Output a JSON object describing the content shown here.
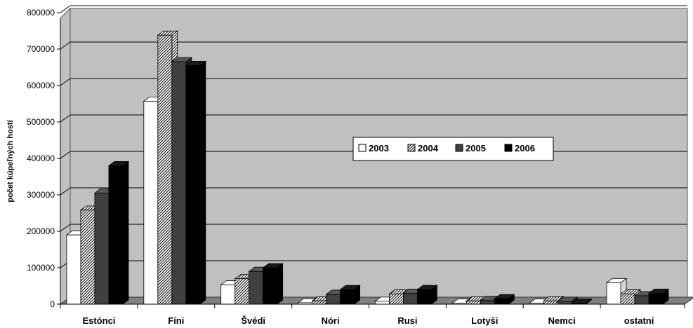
{
  "chart_data": {
    "type": "bar",
    "title": "",
    "xlabel": "",
    "ylabel": "počet kúpeľných hostí",
    "ylim": [
      0,
      800000
    ],
    "yticks": [
      0,
      100000,
      200000,
      300000,
      400000,
      500000,
      600000,
      700000,
      800000
    ],
    "ytick_labels": [
      "0",
      "100000",
      "200000",
      "300000",
      "400000",
      "500000",
      "600000",
      "700000",
      "800000"
    ],
    "grid": true,
    "legend": "center",
    "categories": [
      "Estónci",
      "Fíni",
      "Švédi",
      "Nóri",
      "Rusi",
      "Lotyši",
      "Nemci",
      "ostatní"
    ],
    "series": [
      {
        "name": "2003",
        "fill": "white",
        "values": [
          190000,
          557000,
          53000,
          4000,
          8000,
          3000,
          3000,
          59000
        ]
      },
      {
        "name": "2004",
        "fill": "hatched",
        "values": [
          258000,
          738000,
          70000,
          9000,
          28000,
          9000,
          9000,
          28000
        ]
      },
      {
        "name": "2005",
        "fill": "dark-gray",
        "values": [
          305000,
          665000,
          90000,
          27000,
          30000,
          10000,
          8000,
          23000
        ]
      },
      {
        "name": "2006",
        "fill": "black",
        "values": [
          380000,
          655000,
          100000,
          40000,
          40000,
          15000,
          3000,
          30000
        ]
      }
    ]
  }
}
